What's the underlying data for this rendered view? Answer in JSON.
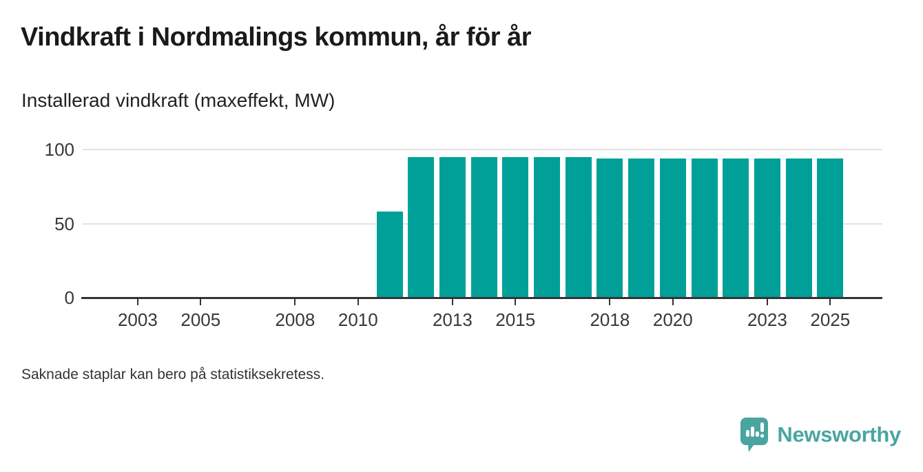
{
  "header": {
    "title": "Vindkraft i Nordmalings kommun, år för år",
    "subtitle": "Installerad vindkraft (maxeffekt, MW)"
  },
  "footer": {
    "note": "Saknade staplar kan bero på statistiksekretess.",
    "brand": "Newsworthy"
  },
  "colors": {
    "bar": "#00a099",
    "axis": "#333333",
    "grid": "#e2e2e2",
    "brand_teal": "#4aa5a1",
    "title_text": "#1a1a1a"
  },
  "icons": {
    "logo": "newsworthy-speech-bubble-barchart-icon"
  },
  "chart_data": {
    "type": "bar",
    "title": "Vindkraft i Nordmalings kommun, år för år",
    "subtitle": "Installerad vindkraft (maxeffekt, MW)",
    "unit": "MW",
    "xlabel": "",
    "ylabel": "Installerad vindkraft (maxeffekt, MW)",
    "ylim": [
      0,
      100
    ],
    "y_ticks": [
      0,
      50,
      100
    ],
    "x_ticks": [
      2003,
      2005,
      2008,
      2010,
      2013,
      2015,
      2018,
      2020,
      2023,
      2025
    ],
    "x_domain": [
      2002,
      2026
    ],
    "grid": "horizontal-only",
    "legend": "none",
    "years": [
      2011,
      2012,
      2013,
      2014,
      2015,
      2016,
      2017,
      2018,
      2019,
      2020,
      2021,
      2022,
      2023,
      2024,
      2025
    ],
    "values": [
      58,
      95,
      95,
      95,
      95,
      95,
      95,
      94,
      94,
      94,
      94,
      94,
      94,
      94,
      94
    ],
    "missing_years_note": "Saknade staplar kan bero på statistiksekretess."
  }
}
